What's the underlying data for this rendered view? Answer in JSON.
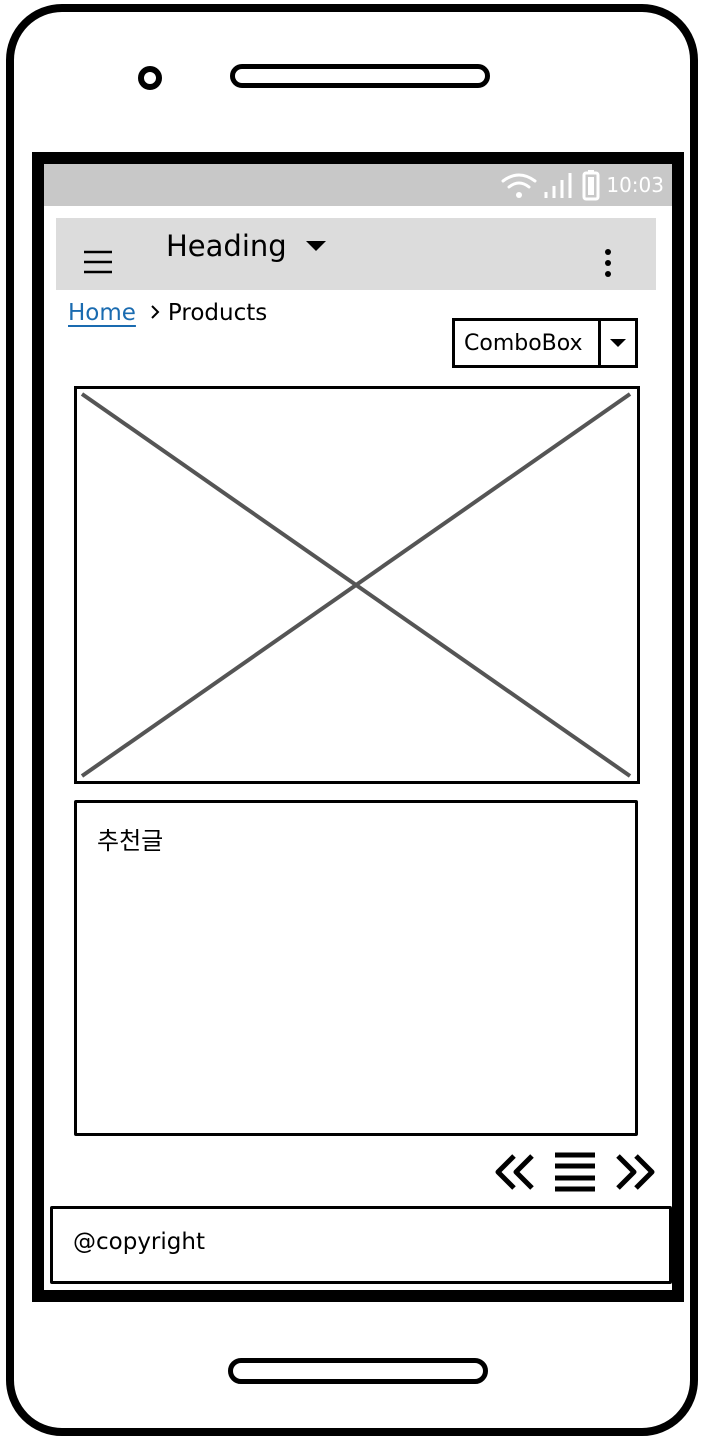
{
  "status_bar": {
    "time": "10:03",
    "icons": [
      "wifi-icon",
      "signal-icon",
      "battery-icon"
    ]
  },
  "app_bar": {
    "title": "Heading",
    "icons": [
      "hamburger-menu-icon",
      "caret-down-icon",
      "kebab-menu-icon"
    ]
  },
  "breadcrumb": {
    "items": [
      "Home",
      "Products"
    ]
  },
  "combobox": {
    "value": "ComboBox"
  },
  "content": {
    "image_placeholder": "image-placeholder",
    "text_box_label": "추천글"
  },
  "pager": {
    "icons": [
      "double-chevron-left-icon",
      "list-icon",
      "double-chevron-right-icon"
    ]
  },
  "footer": {
    "text": "@copyright"
  },
  "colors": {
    "status_bar": "#c8c8c8",
    "app_bar": "#dcdcdc",
    "link": "#1a6bb0",
    "placeholder_cross": "#555555"
  }
}
